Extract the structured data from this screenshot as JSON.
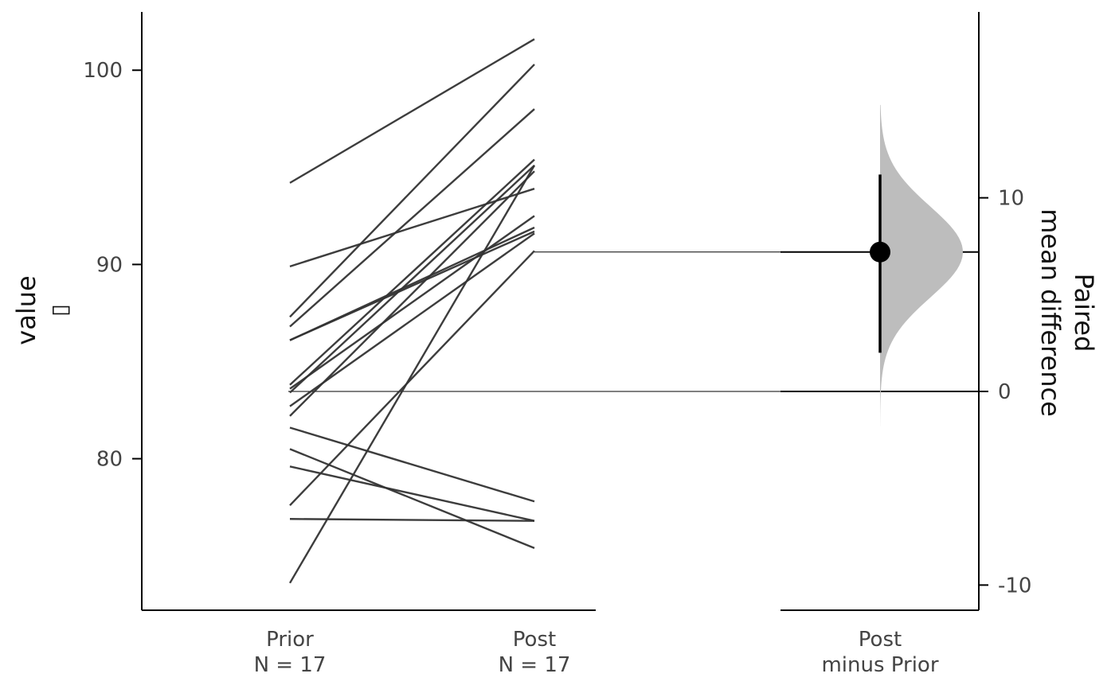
{
  "chart_data": {
    "type": "paired-estimation-plot",
    "left_axis": {
      "label": "value",
      "label_glyph": "▯",
      "ticks": [
        80,
        90,
        100
      ],
      "range": [
        72.2,
        103
      ]
    },
    "right_axis": {
      "label_line1": "Paired",
      "label_line2": "mean difference",
      "ticks": [
        -10,
        0,
        10
      ],
      "tick_labels": [
        "-10",
        "0",
        "10"
      ],
      "range": [
        -11.3,
        19.6
      ]
    },
    "groups": [
      {
        "name": "Prior",
        "n_label": "N = 17"
      },
      {
        "name": "Post",
        "n_label": "N = 17"
      }
    ],
    "delta_label_line1": "Post",
    "delta_label_line2": "minus Prior",
    "pairs": [
      {
        "prior": 94.2,
        "post": 101.6
      },
      {
        "prior": 89.9,
        "post": 93.9
      },
      {
        "prior": 87.3,
        "post": 100.3
      },
      {
        "prior": 86.8,
        "post": 98.0
      },
      {
        "prior": 86.1,
        "post": 91.7
      },
      {
        "prior": 86.1,
        "post": 91.9
      },
      {
        "prior": 83.8,
        "post": 95.4
      },
      {
        "prior": 83.6,
        "post": 92.5
      },
      {
        "prior": 83.4,
        "post": 95.1
      },
      {
        "prior": 82.7,
        "post": 91.6
      },
      {
        "prior": 82.2,
        "post": 94.8
      },
      {
        "prior": 81.6,
        "post": 77.8
      },
      {
        "prior": 80.5,
        "post": 75.4
      },
      {
        "prior": 79.6,
        "post": 76.8
      },
      {
        "prior": 77.6,
        "post": 90.7
      },
      {
        "prior": 76.9,
        "post": 76.8
      },
      {
        "prior": 73.6,
        "post": 95.1
      }
    ],
    "prior_mean": 83.3,
    "post_mean": 90.5,
    "paired_mean_difference": 7.2,
    "ci": [
      2.0,
      11.2
    ],
    "bootstrap_range": [
      -1.8,
      14.8
    ],
    "colors": {
      "lines": "#333333",
      "distribution": "#bdbdbd",
      "axis": "#000000",
      "tick_text": "#444444"
    }
  }
}
